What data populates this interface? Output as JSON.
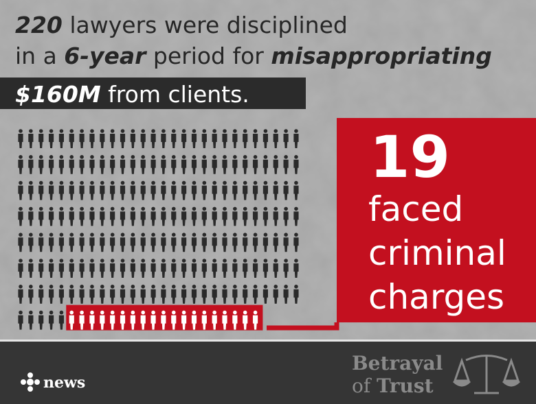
{
  "headline": {
    "lines": [
      [
        {
          "text": "220",
          "bold": true
        },
        {
          "text": " lawyers were disciplined",
          "bold": false
        }
      ],
      [
        {
          "text": "in a ",
          "bold": false
        },
        {
          "text": "6-year",
          "bold": true
        },
        {
          "text": " period for ",
          "bold": false
        },
        {
          "text": "misappropriating",
          "bold": true
        }
      ],
      [
        {
          "text": "$160M",
          "bold": true
        },
        {
          "text": " from clients.",
          "bold": false
        }
      ]
    ]
  },
  "callout": {
    "number": "19",
    "lines": [
      "faced",
      "criminal",
      "charges"
    ]
  },
  "footer": {
    "logo": "news",
    "series": [
      {
        "text": "Betrayal",
        "bold": true
      },
      {
        "text": "of",
        "bold": false
      },
      {
        "text": "Trust",
        "bold": true
      }
    ]
  }
}
